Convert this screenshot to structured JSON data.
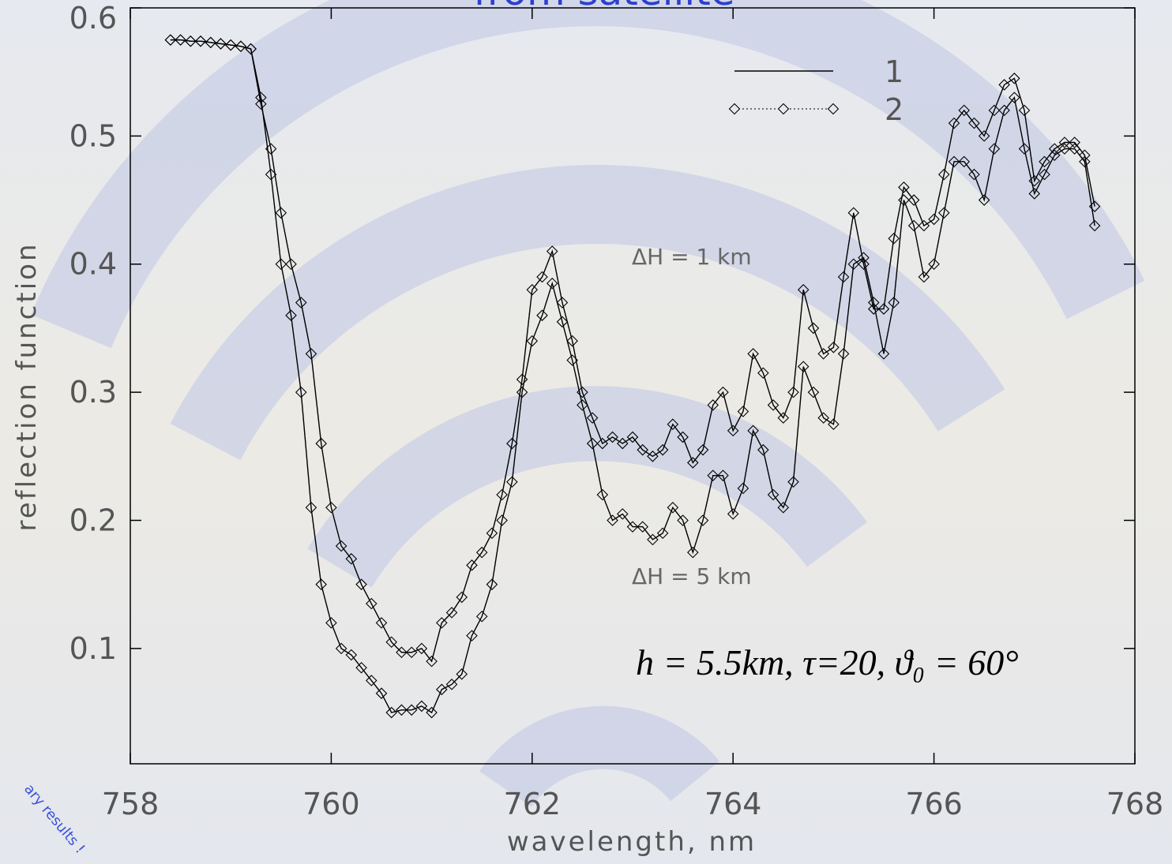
{
  "chart_data": {
    "type": "line",
    "title": "from satellite",
    "watermark": "ary results !",
    "xlabel": "wavelength, nm",
    "ylabel": "reflection function",
    "xlim": [
      758,
      768
    ],
    "ylim": [
      0.01,
      0.6
    ],
    "xticks": [
      758,
      760,
      762,
      764,
      766,
      768
    ],
    "yticks": [
      0.1,
      0.2,
      0.3,
      0.4,
      0.5,
      0.6
    ],
    "legend": "upper right",
    "annotations": [
      "ΔH  =  1  km",
      "ΔH  =  5  km",
      "h = 5.5km,  τ=20,  ϑ₀ = 60°"
    ],
    "x": [
      758.4,
      758.5,
      758.6,
      758.7,
      758.8,
      758.9,
      759,
      759.1,
      759.2,
      759.3,
      759.4,
      759.5,
      759.6,
      759.7,
      759.8,
      759.9,
      760,
      760.1,
      760.2,
      760.3,
      760.4,
      760.5,
      760.6,
      760.7,
      760.8,
      760.9,
      761,
      761.1,
      761.2,
      761.3,
      761.4,
      761.5,
      761.6,
      761.7,
      761.8,
      761.9,
      762,
      762.1,
      762.2,
      762.3,
      762.4,
      762.5,
      762.6,
      762.7,
      762.8,
      762.9,
      763,
      763.1,
      763.2,
      763.3,
      763.4,
      763.5,
      763.6,
      763.7,
      763.8,
      763.9,
      764,
      764.1,
      764.2,
      764.3,
      764.4,
      764.5,
      764.6,
      764.7,
      764.8,
      764.9,
      765,
      765.1,
      765.2,
      765.3,
      765.4,
      765.5,
      765.6,
      765.7,
      765.8,
      765.9,
      766,
      766.1,
      766.2,
      766.3,
      766.4,
      766.5,
      766.6,
      766.7,
      766.8,
      766.9,
      767,
      767.1,
      767.2,
      767.3,
      767.4,
      767.5,
      767.6
    ],
    "series": [
      {
        "name": "1",
        "style": "line",
        "color": "#000000",
        "values": [
          0.575,
          0.575,
          0.574,
          0.574,
          0.573,
          0.572,
          0.571,
          0.57,
          0.568,
          0.525,
          0.49,
          0.44,
          0.4,
          0.37,
          0.33,
          0.26,
          0.21,
          0.18,
          0.17,
          0.15,
          0.135,
          0.12,
          0.105,
          0.097,
          0.097,
          0.1,
          0.09,
          0.12,
          0.128,
          0.14,
          0.165,
          0.175,
          0.19,
          0.22,
          0.26,
          0.31,
          0.38,
          0.39,
          0.41,
          0.37,
          0.34,
          0.3,
          0.28,
          0.26,
          0.265,
          0.26,
          0.265,
          0.255,
          0.25,
          0.255,
          0.275,
          0.265,
          0.245,
          0.255,
          0.29,
          0.3,
          0.27,
          0.285,
          0.33,
          0.315,
          0.29,
          0.28,
          0.3,
          0.38,
          0.35,
          0.33,
          0.335,
          0.39,
          0.44,
          0.4,
          0.365,
          0.365,
          0.42,
          0.46,
          0.45,
          0.43,
          0.435,
          0.47,
          0.51,
          0.52,
          0.51,
          0.5,
          0.52,
          0.54,
          0.545,
          0.52,
          0.465,
          0.48,
          0.49,
          0.495,
          0.495,
          0.485,
          0.445
        ]
      },
      {
        "name": "2",
        "style": "diamond",
        "color": "#000000",
        "values": [
          0.575,
          0.575,
          0.574,
          0.574,
          0.573,
          0.572,
          0.571,
          0.57,
          0.568,
          0.525,
          0.49,
          0.44,
          0.4,
          0.37,
          0.33,
          0.26,
          0.21,
          0.18,
          0.17,
          0.15,
          0.135,
          0.12,
          0.105,
          0.097,
          0.097,
          0.1,
          0.09,
          0.12,
          0.128,
          0.14,
          0.165,
          0.175,
          0.19,
          0.22,
          0.26,
          0.31,
          0.38,
          0.39,
          0.41,
          0.37,
          0.34,
          0.3,
          0.28,
          0.26,
          0.265,
          0.26,
          0.265,
          0.255,
          0.25,
          0.255,
          0.275,
          0.265,
          0.245,
          0.255,
          0.29,
          0.3,
          0.27,
          0.285,
          0.33,
          0.315,
          0.29,
          0.28,
          0.3,
          0.38,
          0.35,
          0.33,
          0.335,
          0.39,
          0.44,
          0.4,
          0.365,
          0.365,
          0.42,
          0.46,
          0.45,
          0.43,
          0.435,
          0.47,
          0.51,
          0.52,
          0.51,
          0.5,
          0.52,
          0.54,
          0.545,
          0.52,
          0.465,
          0.48,
          0.49,
          0.495,
          0.495,
          0.485,
          0.445
        ]
      },
      {
        "style": "line",
        "color": "#000000",
        "values": [
          0.575,
          0.575,
          0.574,
          0.574,
          0.573,
          0.572,
          0.571,
          0.57,
          0.568,
          0.53,
          0.47,
          0.4,
          0.36,
          0.3,
          0.21,
          0.15,
          0.12,
          0.1,
          0.095,
          0.085,
          0.075,
          0.065,
          0.05,
          0.052,
          0.052,
          0.055,
          0.05,
          0.068,
          0.072,
          0.08,
          0.11,
          0.125,
          0.15,
          0.2,
          0.23,
          0.3,
          0.34,
          0.36,
          0.385,
          0.355,
          0.325,
          0.29,
          0.26,
          0.22,
          0.2,
          0.205,
          0.195,
          0.195,
          0.185,
          0.19,
          0.21,
          0.2,
          0.175,
          0.2,
          0.235,
          0.235,
          0.205,
          0.225,
          0.27,
          0.255,
          0.22,
          0.21,
          0.23,
          0.32,
          0.3,
          0.28,
          0.275,
          0.33,
          0.4,
          0.405,
          0.37,
          0.33,
          0.37,
          0.45,
          0.43,
          0.39,
          0.4,
          0.44,
          0.48,
          0.48,
          0.47,
          0.45,
          0.49,
          0.52,
          0.53,
          0.49,
          0.455,
          0.47,
          0.485,
          0.49,
          0.49,
          0.48,
          0.43
        ]
      },
      {
        "style": "diamond",
        "color": "#000000",
        "values": [
          0.575,
          0.575,
          0.574,
          0.574,
          0.573,
          0.572,
          0.571,
          0.57,
          0.568,
          0.53,
          0.47,
          0.4,
          0.36,
          0.3,
          0.21,
          0.15,
          0.12,
          0.1,
          0.095,
          0.085,
          0.075,
          0.065,
          0.05,
          0.052,
          0.052,
          0.055,
          0.05,
          0.068,
          0.072,
          0.08,
          0.11,
          0.125,
          0.15,
          0.2,
          0.23,
          0.3,
          0.34,
          0.36,
          0.385,
          0.355,
          0.325,
          0.29,
          0.26,
          0.22,
          0.2,
          0.205,
          0.195,
          0.195,
          0.185,
          0.19,
          0.21,
          0.2,
          0.175,
          0.2,
          0.235,
          0.235,
          0.205,
          0.225,
          0.27,
          0.255,
          0.22,
          0.21,
          0.23,
          0.32,
          0.3,
          0.28,
          0.275,
          0.33,
          0.4,
          0.405,
          0.37,
          0.33,
          0.37,
          0.45,
          0.43,
          0.39,
          0.4,
          0.44,
          0.48,
          0.48,
          0.47,
          0.45,
          0.49,
          0.52,
          0.53,
          0.49,
          0.455,
          0.47,
          0.485,
          0.49,
          0.49,
          0.48,
          0.43
        ]
      }
    ]
  }
}
